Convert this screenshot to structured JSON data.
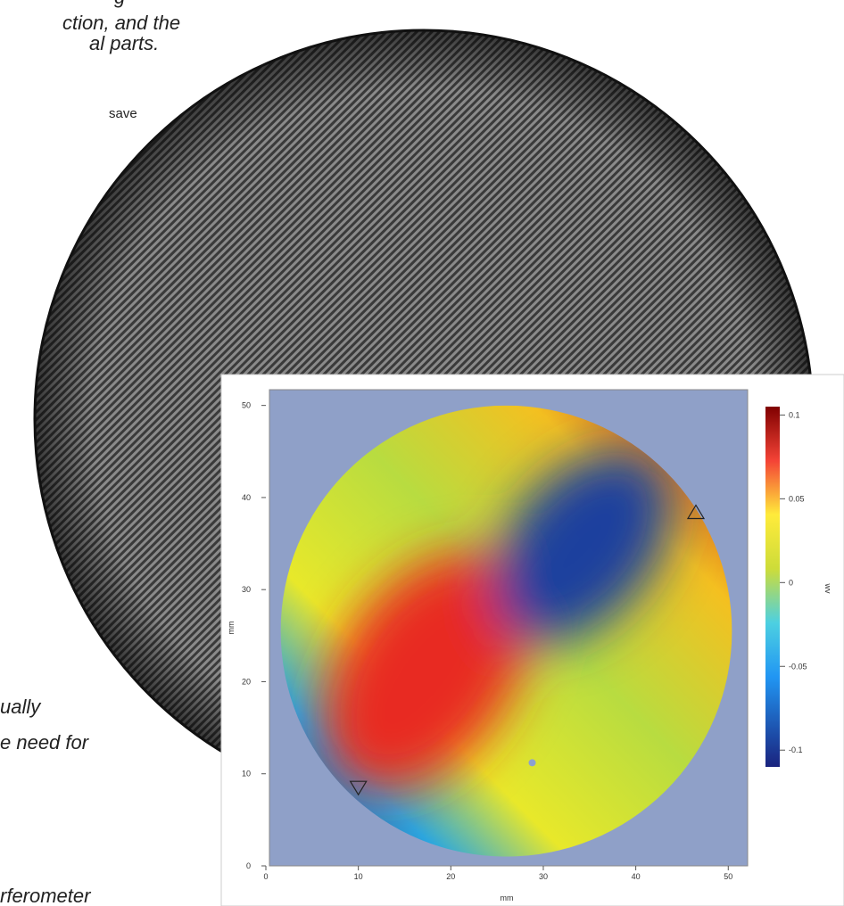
{
  "text_fragments": [
    "g",
    "ction, and the",
    "al parts.",
    "save",
    "ually",
    "e need for",
    "rferometer"
  ],
  "chart_data": {
    "type": "heatmap",
    "xlabel": "mm",
    "ylabel": "mm",
    "xlim": [
      0,
      52
    ],
    "ylim": [
      0,
      52
    ],
    "xticks": [
      0,
      10,
      20,
      30,
      40,
      50
    ],
    "yticks": [
      0,
      10,
      20,
      30,
      40,
      50
    ],
    "aperture": {
      "cx": 26,
      "cy": 25.5,
      "r": 24.4
    },
    "colorbar": {
      "label": "wv",
      "lim": [
        -0.11,
        0.105
      ],
      "ticks": [
        0.1,
        0.05,
        0,
        -0.05,
        -0.1
      ]
    },
    "markers": [
      {
        "shape": "triangle-up",
        "x": 46.5,
        "y": 38.3
      },
      {
        "shape": "triangle-down",
        "x": 10,
        "y": 8.6
      },
      {
        "shape": "dot",
        "x": 28.8,
        "y": 11.2
      }
    ]
  }
}
